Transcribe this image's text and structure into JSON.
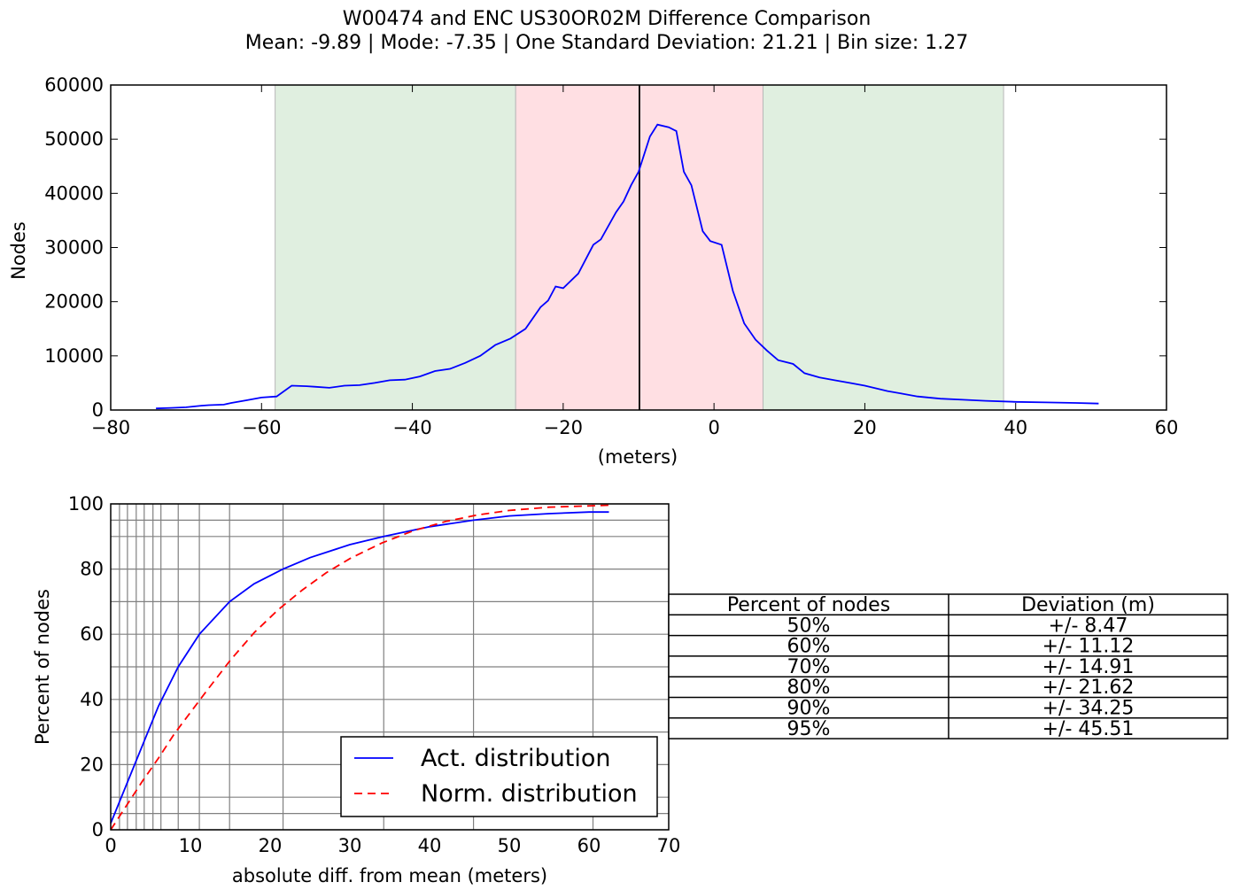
{
  "figure": {
    "title_line1": "W00474 and ENC US30OR02M Difference Comparison",
    "title_line2": "Mean: -9.89 | Mode: -7.35 | One Standard Deviation: 21.21 | Bin size: 1.27"
  },
  "colors": {
    "actual": "#0000ff",
    "normal": "#ff0000",
    "band_inner": "#ffdfe3",
    "band_outer": "#e0efe0",
    "grid": "#808080"
  },
  "chart_data": [
    {
      "type": "line",
      "title": "",
      "xlabel": "(meters)",
      "ylabel": "Nodes",
      "xlim": [
        -80,
        60
      ],
      "ylim": [
        0,
        60000
      ],
      "xticks": [
        -80,
        -60,
        -40,
        -20,
        0,
        20,
        40,
        60
      ],
      "yticks": [
        0,
        10000,
        20000,
        30000,
        40000,
        50000,
        60000
      ],
      "xtick_labels": [
        "−80",
        "−60",
        "−40",
        "−20",
        "0",
        "20",
        "40",
        "60"
      ],
      "ytick_labels": [
        "0",
        "10000",
        "20000",
        "30000",
        "40000",
        "50000",
        "60000"
      ],
      "mean_line_x": -9.89,
      "bands": [
        {
          "from": -58.2,
          "to": -26.3,
          "color": "#e0efe0"
        },
        {
          "from": -26.3,
          "to": 6.5,
          "color": "#ffdfe3"
        },
        {
          "from": 6.5,
          "to": 38.4,
          "color": "#e0efe0"
        }
      ],
      "series": [
        {
          "color": "#0000ff",
          "x": [
            -74,
            -72,
            -70,
            -68,
            -67,
            -65,
            -64,
            -62,
            -60,
            -58,
            -56,
            -54,
            -53,
            -51,
            -49,
            -47,
            -45,
            -43,
            -41,
            -39,
            -37,
            -35,
            -33,
            -31,
            -29,
            -27,
            -25,
            -23,
            -22,
            -21,
            -20,
            -18,
            -16,
            -15,
            -13,
            -12,
            -11,
            -10,
            -8.5,
            -7.5,
            -6,
            -5,
            -4,
            -3,
            -1.5,
            -0.5,
            1,
            2.5,
            4,
            5.5,
            7,
            8.5,
            10.5,
            12,
            14,
            16,
            18,
            20,
            23,
            25,
            27,
            30,
            33,
            36,
            40,
            44,
            48,
            51
          ],
          "values": [
            300,
            400,
            500,
            800,
            900,
            1000,
            1300,
            1800,
            2300,
            2500,
            4500,
            4400,
            4300,
            4100,
            4500,
            4600,
            5000,
            5500,
            5600,
            6200,
            7200,
            7600,
            8700,
            10000,
            12000,
            13200,
            15000,
            19000,
            20200,
            22800,
            22500,
            25200,
            30500,
            31500,
            36500,
            38500,
            41500,
            44000,
            50500,
            52700,
            52200,
            51500,
            44000,
            41500,
            33000,
            31200,
            30500,
            22000,
            16000,
            13000,
            11000,
            9200,
            8500,
            6800,
            6000,
            5500,
            5000,
            4500,
            3500,
            3000,
            2500,
            2100,
            1900,
            1700,
            1500,
            1400,
            1300,
            1200
          ]
        }
      ]
    },
    {
      "type": "line",
      "title": "",
      "xlabel": "absolute diff. from mean (meters)",
      "ylabel": "Percent of nodes",
      "xlim": [
        0,
        70
      ],
      "ylim": [
        0,
        100
      ],
      "xticks": [
        0,
        10,
        20,
        30,
        40,
        50,
        60,
        70
      ],
      "yticks": [
        0,
        20,
        40,
        60,
        80,
        100
      ],
      "grid_x": [
        1.1,
        2.1,
        3.2,
        4.2,
        5.3,
        6.3,
        8.47,
        11.12,
        14.91,
        21.62,
        34.25,
        45.51,
        60.5
      ],
      "grid_y": [
        0,
        5,
        10,
        20,
        30,
        40,
        50,
        60,
        70,
        80,
        90,
        95,
        100
      ],
      "legend_position": "lower-right",
      "series": [
        {
          "name": "Act. distribution",
          "color": "#0000ff",
          "style": "solid",
          "x": [
            0,
            1,
            2,
            3,
            4,
            5,
            6,
            8.47,
            11.12,
            14.91,
            18,
            21.62,
            25,
            30,
            34.25,
            40,
            45.51,
            50,
            55,
            60,
            62.5
          ],
          "values": [
            2,
            8,
            14,
            20,
            26,
            32,
            38,
            50,
            60,
            70,
            75.5,
            80,
            83.5,
            87.5,
            90,
            93,
            95,
            96.3,
            97,
            97.5,
            97.5
          ]
        },
        {
          "name": "Norm. distribution",
          "color": "#ff0000",
          "style": "dashed",
          "x": [
            0,
            2,
            4,
            6,
            8,
            10,
            12,
            15,
            18,
            21,
            24,
            27,
            30,
            34,
            38,
            42,
            46,
            50,
            55,
            62.5
          ],
          "values": [
            0,
            7.5,
            15,
            22,
            29.5,
            36,
            42.5,
            52,
            60.5,
            67.5,
            73.5,
            78.8,
            83.2,
            88,
            91.8,
            94.6,
            96.6,
            98,
            99,
            99.6
          ]
        }
      ]
    },
    {
      "type": "table",
      "columns": [
        "Percent of nodes",
        "Deviation (m)"
      ],
      "rows": [
        [
          "50%",
          "+/- 8.47"
        ],
        [
          "60%",
          "+/- 11.12"
        ],
        [
          "70%",
          "+/- 14.91"
        ],
        [
          "80%",
          "+/- 21.62"
        ],
        [
          "90%",
          "+/- 34.25"
        ],
        [
          "95%",
          "+/- 45.51"
        ]
      ]
    }
  ]
}
